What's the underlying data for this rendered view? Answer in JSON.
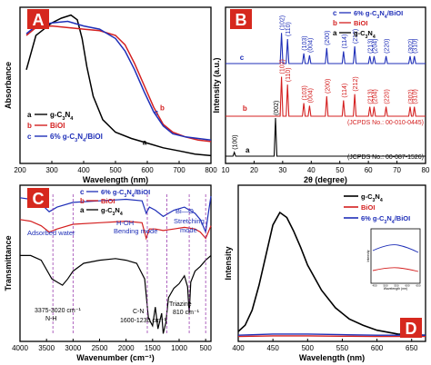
{
  "colors": {
    "black": "#000000",
    "red": "#d42020",
    "blue": "#1f2fb8",
    "violet": "#9b3fb0",
    "panel_label_bg": "#d6281e",
    "panel_label_text": "#ffffff"
  },
  "chart_data": [
    {
      "panel": "A",
      "type": "line",
      "xlabel": "Wavelength (nm)",
      "ylabel": "Absorbance",
      "xlim": [
        200,
        800
      ],
      "xticks": [
        "200",
        "300",
        "400",
        "500",
        "600",
        "700",
        "800"
      ],
      "legend": [
        {
          "letter": "a",
          "label": "g-C3N4",
          "color": "#000000"
        },
        {
          "letter": "b",
          "label": "BiOI",
          "color": "#d42020"
        },
        {
          "letter": "c",
          "label": "6% g-C3N4/BiOI",
          "color": "#1f2fb8"
        }
      ],
      "curve_labels": [
        {
          "text": "c",
          "x": 622,
          "y": 0.31,
          "color": "#1f2fb8"
        },
        {
          "text": "b",
          "x": 640,
          "y": 0.34,
          "color": "#d42020"
        },
        {
          "text": "a",
          "x": 585,
          "y": 0.12,
          "color": "#000000"
        }
      ],
      "series": [
        {
          "name": "g-C3N4",
          "color": "#000000",
          "x": [
            220,
            250,
            300,
            330,
            360,
            380,
            395,
            410,
            430,
            460,
            500,
            550,
            600,
            650,
            700,
            750,
            800
          ],
          "y": [
            0.6,
            0.82,
            0.9,
            0.93,
            0.95,
            0.92,
            0.8,
            0.62,
            0.43,
            0.28,
            0.2,
            0.16,
            0.13,
            0.1,
            0.08,
            0.06,
            0.05
          ]
        },
        {
          "name": "BiOI",
          "color": "#d42020",
          "x": [
            220,
            250,
            300,
            350,
            400,
            450,
            500,
            530,
            560,
            590,
            620,
            650,
            680,
            720,
            760,
            800
          ],
          "y": [
            0.82,
            0.87,
            0.88,
            0.87,
            0.86,
            0.85,
            0.82,
            0.76,
            0.64,
            0.5,
            0.36,
            0.25,
            0.2,
            0.17,
            0.15,
            0.14
          ]
        },
        {
          "name": "6% g-C3N4/BiOI",
          "color": "#1f2fb8",
          "x": [
            220,
            250,
            300,
            350,
            400,
            450,
            500,
            530,
            560,
            590,
            620,
            650,
            680,
            720,
            760,
            800
          ],
          "y": [
            0.83,
            0.88,
            0.9,
            0.91,
            0.88,
            0.86,
            0.8,
            0.72,
            0.6,
            0.46,
            0.33,
            0.24,
            0.19,
            0.17,
            0.16,
            0.15
          ]
        }
      ]
    },
    {
      "panel": "B",
      "type": "line",
      "xlabel": "2θ (degree)",
      "ylabel": "Intensity (a.u.)",
      "xlim": [
        10,
        80
      ],
      "xticks": [
        "10",
        "20",
        "30",
        "40",
        "50",
        "60",
        "70",
        "80"
      ],
      "legend": [
        {
          "letter": "c",
          "label": "6% g-C3N4/BiOI",
          "color": "#1f2fb8"
        },
        {
          "letter": "b",
          "label": "BiOI",
          "color": "#d42020"
        },
        {
          "letter": "a",
          "label": "g-C3N4",
          "color": "#000000"
        }
      ],
      "reference_labels": [
        {
          "text": "(JCPDS No.: 00-010-0445)",
          "color": "#d42020"
        },
        {
          "text": "(JCPDS No.: 00-087-1526)",
          "color": "#000000"
        }
      ],
      "series": [
        {
          "name": "6% g-C3N4/BiOI",
          "color": "#1f2fb8",
          "peaks": [
            {
              "x": 29.6,
              "h": 0.75,
              "label": "(102)"
            },
            {
              "x": 31.7,
              "h": 0.6,
              "label": "(110)"
            },
            {
              "x": 37.4,
              "h": 0.25,
              "label": "(103)"
            },
            {
              "x": 39.4,
              "h": 0.2,
              "label": "(004)"
            },
            {
              "x": 45.4,
              "h": 0.38,
              "label": "(200)"
            },
            {
              "x": 51.3,
              "h": 0.3,
              "label": "(114)"
            },
            {
              "x": 55.2,
              "h": 0.42,
              "label": "(212)"
            },
            {
              "x": 60.5,
              "h": 0.18,
              "label": "(213)"
            },
            {
              "x": 62.0,
              "h": 0.18,
              "label": "(204)"
            },
            {
              "x": 66.2,
              "h": 0.18,
              "label": "(220)"
            },
            {
              "x": 74.6,
              "h": 0.18,
              "label": "(302)"
            },
            {
              "x": 76.1,
              "h": 0.18,
              "label": "(310)"
            }
          ]
        },
        {
          "name": "BiOI",
          "color": "#d42020",
          "peaks": [
            {
              "x": 29.6,
              "h": 0.75,
              "label": "(102)"
            },
            {
              "x": 31.7,
              "h": 0.6,
              "label": "(110)"
            },
            {
              "x": 37.4,
              "h": 0.25,
              "label": "(103)"
            },
            {
              "x": 39.4,
              "h": 0.2,
              "label": "(004)"
            },
            {
              "x": 45.4,
              "h": 0.38,
              "label": "(200)"
            },
            {
              "x": 51.3,
              "h": 0.3,
              "label": "(114)"
            },
            {
              "x": 55.2,
              "h": 0.42,
              "label": "(212)"
            },
            {
              "x": 60.5,
              "h": 0.18,
              "label": "(213)"
            },
            {
              "x": 62.0,
              "h": 0.18,
              "label": "(204)"
            },
            {
              "x": 66.2,
              "h": 0.18,
              "label": "(220)"
            },
            {
              "x": 74.6,
              "h": 0.18,
              "label": "(302)"
            },
            {
              "x": 76.1,
              "h": 0.18,
              "label": "(310)"
            }
          ]
        },
        {
          "name": "g-C3N4",
          "color": "#000000",
          "peaks": [
            {
              "x": 13.1,
              "h": 0.1,
              "label": "(100)"
            },
            {
              "x": 27.5,
              "h": 1.0,
              "label": "(002)"
            }
          ]
        }
      ]
    },
    {
      "panel": "C",
      "type": "line",
      "xlabel": "Wavenumber (cm⁻¹)",
      "ylabel": "Transmittance",
      "xlim": [
        4000,
        400
      ],
      "xticks": [
        "4000",
        "3500",
        "3000",
        "2500",
        "2000",
        "1500",
        "1000",
        "500"
      ],
      "legend": [
        {
          "letter": "c",
          "label": "6% g-C3N4/BiOI",
          "color": "#1f2fb8"
        },
        {
          "letter": "b",
          "label": "BiOI",
          "color": "#d42020"
        },
        {
          "letter": "a",
          "label": "g-C3N4",
          "color": "#000000"
        }
      ],
      "annotations": [
        "Adsorbed water",
        "H-OH",
        "Bending mode",
        "Bi—O",
        "Stretching",
        "mode",
        "3375-3020 cm⁻¹",
        "N-H",
        "C-N",
        "1600-1230 cm⁻¹",
        "Triazine",
        "810 cm⁻¹"
      ],
      "series": [
        {
          "name": "6% g-C3N4/BiOI",
          "color": "#1f2fb8",
          "x": [
            4000,
            3800,
            3600,
            3450,
            3300,
            3000,
            2500,
            2000,
            1700,
            1620,
            1560,
            1450,
            1300,
            1100,
            900,
            700,
            600,
            500,
            450,
            400
          ],
          "y": [
            0.92,
            0.91,
            0.88,
            0.83,
            0.86,
            0.89,
            0.9,
            0.91,
            0.9,
            0.82,
            0.86,
            0.84,
            0.8,
            0.84,
            0.86,
            0.82,
            0.78,
            0.7,
            0.82,
            0.93
          ]
        },
        {
          "name": "BiOI",
          "color": "#d42020",
          "x": [
            4000,
            3800,
            3600,
            3450,
            3300,
            3000,
            2500,
            2000,
            1700,
            1620,
            1560,
            1450,
            1300,
            1100,
            900,
            700,
            600,
            500,
            450,
            400
          ],
          "y": [
            0.78,
            0.77,
            0.74,
            0.7,
            0.72,
            0.75,
            0.76,
            0.77,
            0.76,
            0.66,
            0.72,
            0.72,
            0.71,
            0.72,
            0.73,
            0.72,
            0.7,
            0.66,
            0.7,
            0.74
          ]
        },
        {
          "name": "g-C3N4",
          "color": "#000000",
          "x": [
            4000,
            3800,
            3600,
            3400,
            3300,
            3200,
            3100,
            3000,
            2800,
            2500,
            2200,
            2000,
            1800,
            1650,
            1580,
            1500,
            1450,
            1400,
            1330,
            1300,
            1250,
            1200,
            1100,
            1000,
            900,
            840,
            810,
            780,
            700,
            600,
            500,
            400
          ],
          "y": [
            0.55,
            0.55,
            0.52,
            0.4,
            0.38,
            0.36,
            0.4,
            0.45,
            0.5,
            0.52,
            0.53,
            0.52,
            0.5,
            0.4,
            0.15,
            0.1,
            0.22,
            0.08,
            0.18,
            0.05,
            0.12,
            0.28,
            0.34,
            0.37,
            0.42,
            0.35,
            0.18,
            0.38,
            0.45,
            0.48,
            0.52,
            0.55
          ]
        }
      ]
    },
    {
      "panel": "D",
      "type": "line",
      "xlabel": "Wavelength (nm)",
      "ylabel": "Intensity",
      "xlim": [
        400,
        670
      ],
      "xticks": [
        "400",
        "450",
        "500",
        "550",
        "600",
        "650"
      ],
      "legend": [
        {
          "label": "g-C3N4",
          "color": "#000000"
        },
        {
          "label": "BiOI",
          "color": "#d42020"
        },
        {
          "label": "6% g-C3N4/BiOI",
          "color": "#1f2fb8"
        }
      ],
      "series": [
        {
          "name": "g-C3N4",
          "color": "#000000",
          "x": [
            400,
            410,
            420,
            430,
            440,
            450,
            460,
            470,
            480,
            490,
            500,
            520,
            540,
            560,
            580,
            600,
            630,
            670
          ],
          "y": [
            0.05,
            0.1,
            0.22,
            0.42,
            0.66,
            0.9,
            1.0,
            0.96,
            0.85,
            0.72,
            0.58,
            0.38,
            0.24,
            0.15,
            0.1,
            0.06,
            0.03,
            0.02
          ]
        },
        {
          "name": "BiOI",
          "color": "#d42020",
          "x": [
            400,
            450,
            500,
            550,
            600,
            670
          ],
          "y": [
            0.01,
            0.015,
            0.015,
            0.012,
            0.01,
            0.01
          ]
        },
        {
          "name": "6% g-C3N4/BiOI",
          "color": "#1f2fb8",
          "x": [
            400,
            450,
            500,
            550,
            600,
            670
          ],
          "y": [
            0.02,
            0.03,
            0.03,
            0.025,
            0.02,
            0.02
          ]
        }
      ],
      "inset": {
        "ylabel": "Intensity",
        "xlabel": "Wavelength (nm)",
        "xticks": [
          "450",
          "500",
          "550",
          "600",
          "650"
        ]
      }
    }
  ]
}
